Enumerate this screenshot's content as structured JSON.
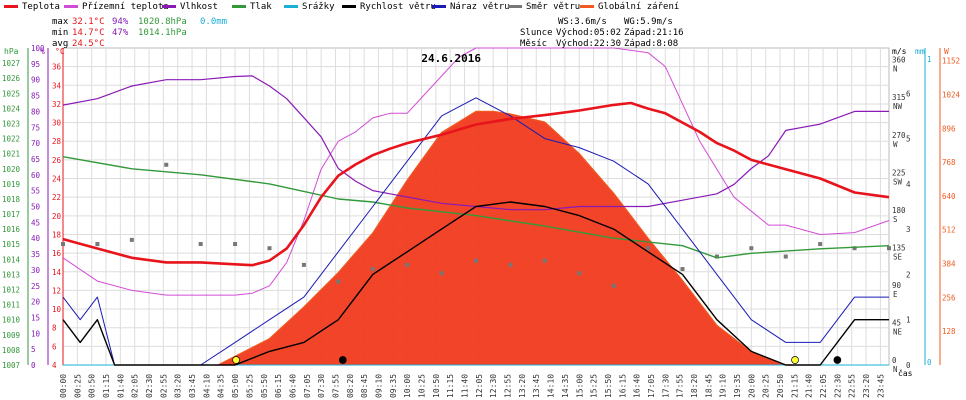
{
  "legend": [
    {
      "label": "Teplota",
      "color": "#e8141c"
    },
    {
      "label": "Přízemní teplota",
      "color": "#d34cd6"
    },
    {
      "label": "Vlhkost",
      "color": "#8a1ab6"
    },
    {
      "label": "Tlak",
      "color": "#33993a"
    },
    {
      "label": "Srážky",
      "color": "#1ab0d6"
    },
    {
      "label": "Rychlost větru",
      "color": "#000000"
    },
    {
      "label": "Náraz větru",
      "color": "#1a1ab6"
    },
    {
      "label": "Směr větru",
      "color": "#777777"
    },
    {
      "label": "Globální záření",
      "color": "#f05a20"
    }
  ],
  "stats": {
    "max_label": "max",
    "max_temp": "32.1°C",
    "max_hum": "94%",
    "max_press": "1020.8hPa",
    "max_rain": "0.0mm",
    "min_label": "min",
    "min_temp": "14.7°C",
    "min_hum": "47%",
    "min_press": "1014.1hPa",
    "avg_label": "avg",
    "avg_temp": "24.5°C",
    "ws": "WS:3.6m/s",
    "wg": "WG:5.9m/s",
    "sun_label": "Slunce",
    "sun_rise": "Východ:05:02",
    "sun_set": "Západ:21:16",
    "moon_label": "Měsíc",
    "moon_rise": "Východ:22:30",
    "moon_set": "Západ:8:08"
  },
  "chart_data": {
    "type": "line",
    "title": "24.6.2016",
    "xlabel": "čas",
    "x_ticks": [
      "00:00",
      "00:25",
      "00:50",
      "01:15",
      "01:40",
      "02:05",
      "02:30",
      "02:55",
      "03:20",
      "03:45",
      "04:10",
      "04:35",
      "05:00",
      "05:25",
      "05:50",
      "06:15",
      "06:40",
      "07:05",
      "07:30",
      "07:55",
      "08:20",
      "08:45",
      "09:10",
      "09:35",
      "10:00",
      "10:25",
      "10:50",
      "11:15",
      "11:40",
      "12:05",
      "12:30",
      "12:55",
      "13:20",
      "13:45",
      "14:10",
      "14:35",
      "15:00",
      "15:25",
      "15:50",
      "16:15",
      "16:40",
      "17:05",
      "17:30",
      "17:55",
      "18:20",
      "18:45",
      "19:10",
      "19:35",
      "20:00",
      "20:25",
      "20:50",
      "21:15",
      "21:40",
      "22:05",
      "22:30",
      "22:55",
      "23:20",
      "23:45"
    ],
    "axes": {
      "hPa": {
        "unit": "hPa",
        "range": [
          1007,
          1028
        ],
        "ticks": [
          "1007",
          "1008",
          "1009",
          "1010",
          "1011",
          "1012",
          "1013",
          "1014",
          "1015",
          "1016",
          "1017",
          "1018",
          "1019",
          "1020",
          "1021",
          "1022",
          "1023",
          "1024",
          "1025",
          "1026",
          "1027"
        ]
      },
      "pct": {
        "unit": "%",
        "range": [
          0,
          100
        ],
        "ticks": [
          "0",
          "5",
          "10",
          "15",
          "20",
          "25",
          "30",
          "35",
          "40",
          "45",
          "50",
          "55",
          "60",
          "65",
          "70",
          "75",
          "80",
          "85",
          "90",
          "95",
          "100"
        ]
      },
      "degC": {
        "unit": "°C",
        "range": [
          4,
          38
        ],
        "ticks": [
          "4",
          "6",
          "8",
          "10",
          "12",
          "14",
          "16",
          "18",
          "20",
          "22",
          "24",
          "26",
          "28",
          "30",
          "32",
          "34",
          "36"
        ]
      },
      "dir": {
        "unit": "m/s",
        "range": [
          0,
          380
        ],
        "ticks": [
          "0",
          "45",
          "90",
          "135",
          "180",
          "225",
          "270",
          "315",
          "360"
        ],
        "labels": [
          "N",
          "NE",
          "E",
          "SE",
          "S",
          "SW",
          "W",
          "NW",
          "N"
        ]
      },
      "mm": {
        "unit": "mm",
        "range": [
          0,
          1
        ]
      },
      "wind": {
        "unit": "m/s",
        "range": [
          0,
          7
        ],
        "ticks": [
          "0",
          "1",
          "2",
          "3",
          "4",
          "5",
          "6"
        ]
      },
      "rad": {
        "unit": "W",
        "range": [
          0,
          1200
        ],
        "ticks": [
          "128",
          "256",
          "384",
          "512",
          "640",
          "768",
          "896",
          "1024",
          "1152"
        ]
      }
    },
    "series": [
      {
        "name": "Teplota",
        "axis": "degC",
        "x": [
          0,
          1,
          2,
          3,
          4,
          5,
          5.5,
          6,
          6.5,
          7,
          7.5,
          8,
          8.5,
          9,
          9.5,
          10,
          11,
          12,
          13,
          14,
          15,
          16,
          16.5,
          17,
          17.5,
          18,
          18.5,
          19,
          19.5,
          20,
          21,
          22,
          23,
          24
        ],
        "y": [
          17.5,
          16.5,
          15.5,
          15,
          15,
          14.8,
          14.7,
          15.2,
          16.5,
          19,
          22,
          24.3,
          25.5,
          26.5,
          27.2,
          27.8,
          28.7,
          29.8,
          30.4,
          30.8,
          31.3,
          31.9,
          32.1,
          31.5,
          31,
          30,
          29,
          27.8,
          27,
          26,
          25,
          24,
          22.5,
          22
        ]
      },
      {
        "name": "Přízemní teplota",
        "axis": "degC",
        "x": [
          0,
          1,
          2,
          3,
          4,
          5,
          5.5,
          6,
          6.5,
          7,
          7.5,
          8,
          8.5,
          9,
          9.5,
          10,
          10.5,
          11,
          11.5,
          12,
          13,
          14,
          15,
          16,
          17,
          17.5,
          18,
          18.5,
          19,
          19.5,
          20,
          20.5,
          21,
          22,
          23,
          24
        ],
        "y": [
          15.5,
          13,
          12,
          11.5,
          11.5,
          11.5,
          11.7,
          12.5,
          15,
          19.5,
          25,
          28,
          29,
          30.5,
          31,
          31,
          33,
          35,
          37,
          38,
          38,
          38,
          38,
          38,
          37.5,
          36,
          32,
          28,
          25,
          22,
          20.5,
          19,
          19,
          18,
          18.2,
          19.5
        ]
      },
      {
        "name": "Vlhkost",
        "axis": "pct",
        "x": [
          0,
          1,
          2,
          3,
          4,
          5,
          5.5,
          6,
          6.5,
          7,
          7.5,
          8,
          8.5,
          9,
          9.5,
          10,
          11,
          12,
          13,
          14,
          15,
          16,
          17,
          18,
          19,
          19.5,
          20,
          20.5,
          21,
          22,
          23,
          24
        ],
        "y": [
          82,
          84,
          88,
          90,
          90,
          91,
          91.2,
          88,
          84,
          78,
          72,
          62,
          58,
          55,
          54,
          53,
          51,
          50,
          49,
          49,
          50,
          50,
          50,
          52,
          54,
          57,
          62,
          66,
          74,
          76,
          80,
          80
        ]
      },
      {
        "name": "Tlak",
        "axis": "hPa",
        "x": [
          0,
          2,
          4,
          6,
          7,
          8,
          9,
          10,
          12,
          14,
          16,
          18,
          19,
          20,
          22,
          24
        ],
        "y": [
          1020.8,
          1020,
          1019.6,
          1019,
          1018.5,
          1018,
          1017.8,
          1017.4,
          1016.9,
          1016.2,
          1015.4,
          1014.9,
          1014.1,
          1014.4,
          1014.7,
          1014.9
        ]
      },
      {
        "name": "Srážky",
        "axis": "mm",
        "x": [
          0,
          24
        ],
        "y": [
          0,
          0
        ]
      },
      {
        "name": "Rychlost větru",
        "axis": "wind",
        "x": [
          0,
          0.5,
          1,
          1.5,
          2,
          4,
          5,
          6,
          7,
          8,
          9,
          10,
          11,
          12,
          13,
          14,
          15,
          16,
          17,
          18,
          19,
          20,
          21,
          22,
          23,
          24
        ],
        "y": [
          1,
          0.5,
          1,
          0,
          0,
          0,
          0,
          0.3,
          0.5,
          1,
          2,
          2.5,
          3,
          3.5,
          3.6,
          3.5,
          3.3,
          3,
          2.5,
          2,
          1,
          0.3,
          0,
          0,
          1,
          1
        ]
      },
      {
        "name": "Náraz větru",
        "axis": "wind",
        "x": [
          0,
          0.5,
          1,
          1.5,
          2,
          4,
          5,
          6,
          7,
          8,
          9,
          10,
          11,
          12,
          13,
          14,
          15,
          16,
          17,
          18,
          19,
          20,
          21,
          22,
          23,
          24
        ],
        "y": [
          1.5,
          1,
          1.5,
          0,
          0,
          0,
          0.5,
          1,
          1.5,
          2.5,
          3.5,
          4.5,
          5.5,
          5.9,
          5.5,
          5,
          4.8,
          4.5,
          4,
          3,
          2,
          1,
          0.5,
          0.5,
          1.5,
          1.5
        ]
      },
      {
        "name": "Směr větru",
        "axis": "dir",
        "x": [
          0,
          1,
          2,
          3,
          4,
          5,
          6,
          7,
          8,
          9,
          10,
          11,
          12,
          13,
          14,
          15,
          16,
          17,
          18,
          19,
          20,
          21,
          22,
          23,
          24
        ],
        "y": [
          145,
          145,
          150,
          240,
          145,
          145,
          140,
          120,
          100,
          115,
          120,
          110,
          125,
          120,
          125,
          110,
          95,
          140,
          115,
          130,
          140,
          130,
          145,
          140,
          140
        ]
      },
      {
        "name": "Globální záření",
        "axis": "rad",
        "x": [
          4.5,
          6,
          7,
          8,
          9,
          10,
          11,
          12,
          12.5,
          13,
          14,
          15,
          16,
          17,
          18,
          19,
          20,
          21,
          21.2
        ],
        "y": [
          0,
          100,
          220,
          350,
          500,
          700,
          880,
          960,
          960,
          950,
          920,
          800,
          650,
          480,
          320,
          150,
          50,
          0,
          0
        ]
      }
    ],
    "markers": [
      {
        "type": "sunrise",
        "x": 5.03
      },
      {
        "type": "moonset",
        "x": 8.13
      },
      {
        "type": "sunset",
        "x": 21.27
      },
      {
        "type": "moonrise",
        "x": 22.5
      }
    ],
    "grid": true
  }
}
